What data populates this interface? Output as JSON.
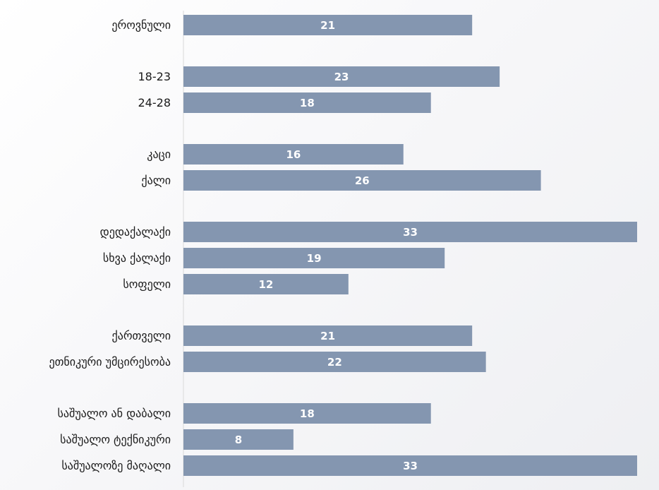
{
  "chart_data": {
    "type": "bar",
    "orientation": "horizontal",
    "bar_color": "#8496b0",
    "value_label_color": "#ffffff",
    "x_range": [
      0,
      33
    ],
    "grid": false,
    "legend": "none",
    "title": "",
    "xlabel": "",
    "ylabel": "",
    "groups": [
      {
        "items": [
          {
            "label": "ეროვნული",
            "value": 21
          }
        ]
      },
      {
        "items": [
          {
            "label": "18-23",
            "value": 23
          },
          {
            "label": "24-28",
            "value": 18
          }
        ]
      },
      {
        "items": [
          {
            "label": "კაცი",
            "value": 16
          },
          {
            "label": "ქალი",
            "value": 26
          }
        ]
      },
      {
        "items": [
          {
            "label": "დედაქალაქი",
            "value": 33
          },
          {
            "label": "სხვა ქალაქი",
            "value": 19
          },
          {
            "label": "სოფელი",
            "value": 12
          }
        ]
      },
      {
        "items": [
          {
            "label": "ქართველი",
            "value": 21
          },
          {
            "label": "ეთნიკური უმცირესობა",
            "value": 22
          }
        ]
      },
      {
        "items": [
          {
            "label": "საშუალო ან დაბალი",
            "value": 18
          },
          {
            "label": "საშუალო ტექნიკური",
            "value": 8
          },
          {
            "label": "საშუალოზე მაღალი",
            "value": 33
          }
        ]
      }
    ]
  }
}
